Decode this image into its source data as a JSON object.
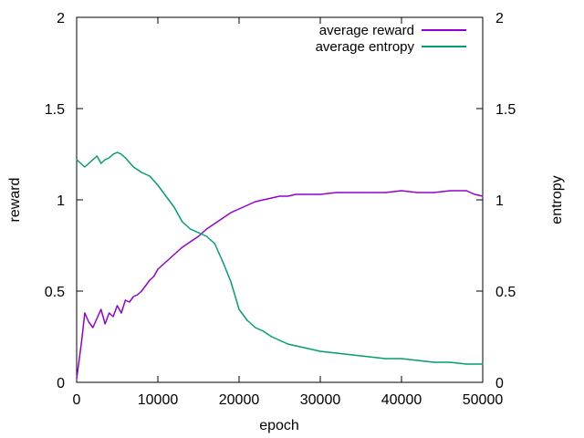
{
  "chart_data": {
    "type": "line",
    "xlabel": "epoch",
    "ylabel": "reward",
    "y2label": "entropy",
    "xlim": [
      0,
      50000
    ],
    "ylim": [
      0,
      2
    ],
    "y2lim": [
      0,
      2
    ],
    "xticks": [
      0,
      10000,
      20000,
      30000,
      40000,
      50000
    ],
    "xtick_labels": [
      "0",
      "10000",
      "20000",
      "30000",
      "40000",
      "50000"
    ],
    "yticks": [
      0,
      0.5,
      1,
      1.5,
      2
    ],
    "ytick_labels": [
      "0",
      "0.5",
      "1",
      "1.5",
      "2"
    ],
    "y2ticks": [
      0,
      0.5,
      1,
      1.5,
      2
    ],
    "y2tick_labels": [
      "0",
      "0.5",
      "1",
      "1.5",
      "2"
    ],
    "grid": false,
    "legend_position": "top-right",
    "series": [
      {
        "name": "average reward",
        "axis": "left",
        "color": "#9400d3",
        "x": [
          0,
          300,
          600,
          1000,
          1500,
          2000,
          2500,
          3000,
          3500,
          4000,
          4500,
          5000,
          5500,
          6000,
          6500,
          7000,
          7500,
          8000,
          8500,
          9000,
          9500,
          10000,
          11000,
          12000,
          13000,
          14000,
          15000,
          16000,
          17000,
          18000,
          19000,
          20000,
          21000,
          22000,
          23000,
          24000,
          25000,
          26000,
          27000,
          28000,
          29000,
          30000,
          32000,
          34000,
          36000,
          38000,
          40000,
          42000,
          44000,
          46000,
          48000,
          49000,
          50000
        ],
        "y": [
          0.02,
          0.12,
          0.22,
          0.38,
          0.33,
          0.3,
          0.35,
          0.4,
          0.32,
          0.38,
          0.36,
          0.42,
          0.38,
          0.45,
          0.44,
          0.47,
          0.48,
          0.5,
          0.53,
          0.56,
          0.58,
          0.62,
          0.66,
          0.7,
          0.74,
          0.77,
          0.8,
          0.84,
          0.87,
          0.9,
          0.93,
          0.95,
          0.97,
          0.99,
          1.0,
          1.01,
          1.02,
          1.02,
          1.03,
          1.03,
          1.03,
          1.03,
          1.04,
          1.04,
          1.04,
          1.04,
          1.05,
          1.04,
          1.04,
          1.05,
          1.05,
          1.03,
          1.02
        ]
      },
      {
        "name": "average entropy",
        "axis": "right",
        "color": "#009e73",
        "x": [
          0,
          500,
          1000,
          1500,
          2000,
          2500,
          3000,
          3500,
          4000,
          4500,
          5000,
          5500,
          6000,
          7000,
          8000,
          9000,
          10000,
          11000,
          12000,
          13000,
          14000,
          15000,
          16000,
          17000,
          18000,
          19000,
          20000,
          21000,
          22000,
          23000,
          24000,
          25000,
          26000,
          27000,
          28000,
          30000,
          32000,
          34000,
          36000,
          38000,
          40000,
          42000,
          44000,
          46000,
          48000,
          50000
        ],
        "y": [
          1.22,
          1.2,
          1.18,
          1.2,
          1.22,
          1.24,
          1.2,
          1.22,
          1.23,
          1.25,
          1.26,
          1.25,
          1.23,
          1.18,
          1.15,
          1.13,
          1.08,
          1.02,
          0.96,
          0.88,
          0.84,
          0.82,
          0.8,
          0.76,
          0.66,
          0.55,
          0.4,
          0.34,
          0.3,
          0.28,
          0.25,
          0.23,
          0.21,
          0.2,
          0.19,
          0.17,
          0.16,
          0.15,
          0.14,
          0.13,
          0.13,
          0.12,
          0.11,
          0.11,
          0.1,
          0.1
        ]
      }
    ]
  }
}
